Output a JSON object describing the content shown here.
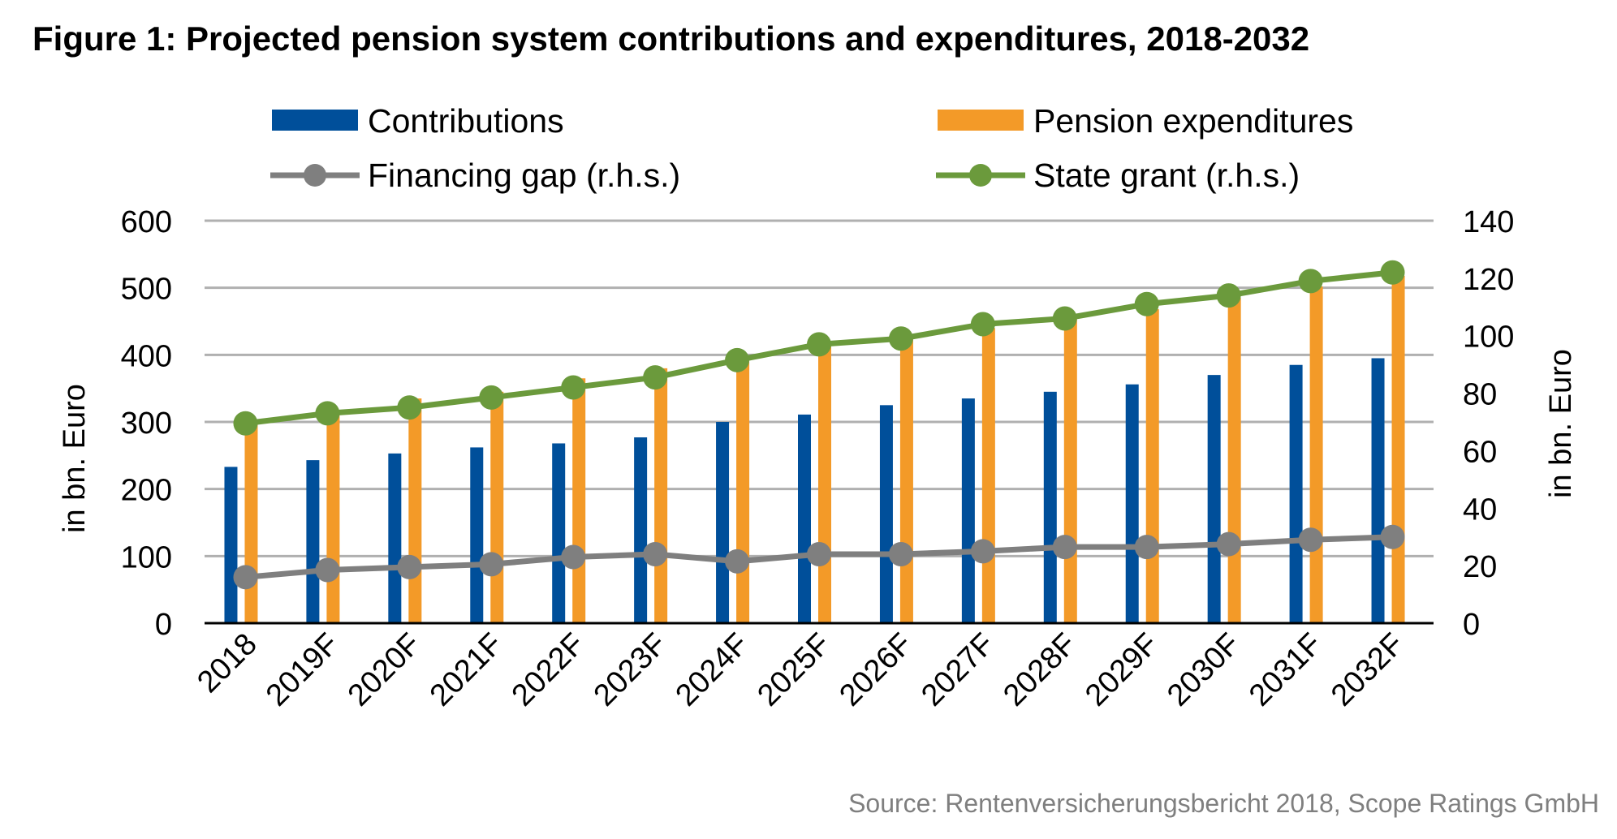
{
  "chart_data": {
    "type": "bar",
    "title": "Figure 1: Projected pension system contributions and expenditures, 2018-2032",
    "source": "Source: Rentenversicherungsbericht 2018, Scope Ratings GmbH",
    "ylabel_left": "in bn. Euro",
    "ylabel_right": "in bn. Euro",
    "ylim_left": [
      0,
      600
    ],
    "ylim_right": [
      0,
      140
    ],
    "yticks_left": [
      "0",
      "100",
      "200",
      "300",
      "400",
      "500",
      "600"
    ],
    "yticks_right": [
      "0",
      "20",
      "40",
      "60",
      "80",
      "100",
      "120",
      "140"
    ],
    "grid": true,
    "legend_position": "top",
    "categories": [
      "2018",
      "2019F",
      "2020F",
      "2021F",
      "2022F",
      "2023F",
      "2024F",
      "2025F",
      "2026F",
      "2027F",
      "2028F",
      "2029F",
      "2030F",
      "2031F",
      "2032F"
    ],
    "series": [
      {
        "name": "Contributions",
        "kind": "bar",
        "axis": "left",
        "color": "#004f9a",
        "values": [
          233,
          243,
          253,
          262,
          268,
          277,
          300,
          311,
          325,
          335,
          345,
          356,
          370,
          385,
          395
        ]
      },
      {
        "name": "Pension expenditures",
        "kind": "bar",
        "axis": "left",
        "color": "#f39a28",
        "values": [
          297,
          313,
          335,
          345,
          365,
          380,
          395,
          420,
          430,
          440,
          455,
          468,
          485,
          502,
          518
        ]
      },
      {
        "name": "Financing gap (r.h.s.)",
        "kind": "line",
        "axis": "right",
        "color": "#7f7f7f",
        "values": [
          16,
          18.5,
          19.5,
          20.5,
          23,
          24,
          21.5,
          24,
          24,
          25,
          26.5,
          26.5,
          27.5,
          29,
          30
        ]
      },
      {
        "name": "State grant (r.h.s.)",
        "kind": "line",
        "axis": "right",
        "color": "#6b9a3c",
        "values": [
          69.5,
          73,
          75,
          78.5,
          82,
          85.5,
          91.5,
          97,
          99,
          104,
          106,
          111,
          114,
          119,
          122
        ]
      }
    ]
  }
}
